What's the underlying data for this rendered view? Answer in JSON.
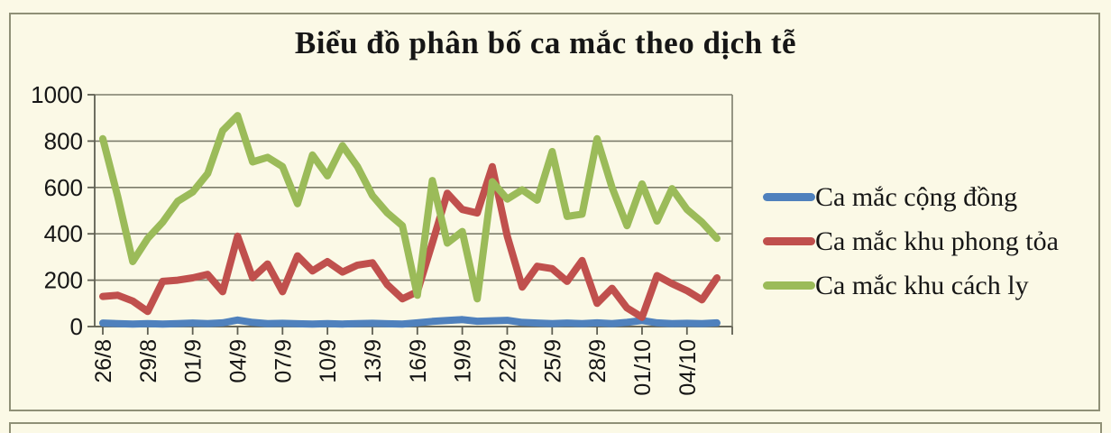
{
  "page": {
    "background_color": "#fbf9e6",
    "frame_border_color": "#8f9077"
  },
  "chart": {
    "title": "Biểu đồ phân bố ca mắc theo dịch tễ",
    "grid_color": "#7d7d6b",
    "axis_color": "#5f5f52",
    "text_color": "#161616",
    "legend": [
      {
        "label": "Ca mắc cộng đồng",
        "color": "#4f81bd"
      },
      {
        "label": "Ca mắc khu phong tỏa",
        "color": "#c0504d"
      },
      {
        "label": "Ca mắc khu cách ly",
        "color": "#9bbb59"
      }
    ]
  },
  "chart_data": {
    "type": "line",
    "title": "Biểu đồ phân bố ca mắc theo dịch tễ",
    "xlabel": "",
    "ylabel": "",
    "ylim": [
      0,
      1000
    ],
    "y_ticks": [
      0,
      200,
      400,
      600,
      800,
      1000
    ],
    "grid": true,
    "legend_position": "right",
    "n_points": 42,
    "x_start_date": "26/8",
    "x_tick_every": 3,
    "x_tick_labels": [
      "26/8",
      "29/8",
      "01/9",
      "04/9",
      "07/9",
      "10/9",
      "13/9",
      "16/9",
      "19/9",
      "22/9",
      "25/9",
      "28/9",
      "01/10",
      "04/10"
    ],
    "series": [
      {
        "name": "Ca mắc cộng đồng",
        "color": "#4f81bd",
        "values": [
          15,
          13,
          11,
          13,
          11,
          13,
          15,
          13,
          16,
          28,
          18,
          13,
          14,
          12,
          11,
          13,
          11,
          13,
          14,
          12,
          11,
          16,
          22,
          26,
          30,
          23,
          25,
          27,
          18,
          15,
          13,
          15,
          13,
          16,
          13,
          18,
          26,
          16,
          13,
          14,
          13,
          16
        ]
      },
      {
        "name": "Ca mắc khu phong tỏa",
        "color": "#c0504d",
        "values": [
          130,
          135,
          110,
          65,
          195,
          200,
          210,
          225,
          150,
          390,
          210,
          270,
          150,
          305,
          240,
          280,
          235,
          265,
          275,
          180,
          120,
          150,
          360,
          575,
          505,
          490,
          690,
          390,
          170,
          260,
          250,
          195,
          285,
          100,
          165,
          80,
          40,
          220,
          185,
          155,
          115,
          210
        ]
      },
      {
        "name": "Ca mắc khu cách ly",
        "color": "#9bbb59",
        "values": [
          810,
          560,
          280,
          380,
          450,
          540,
          580,
          660,
          845,
          910,
          710,
          730,
          690,
          530,
          740,
          650,
          780,
          690,
          565,
          490,
          435,
          135,
          630,
          360,
          410,
          120,
          625,
          550,
          590,
          545,
          755,
          475,
          485,
          810,
          600,
          435,
          615,
          455,
          595,
          505,
          450,
          380
        ]
      }
    ]
  }
}
